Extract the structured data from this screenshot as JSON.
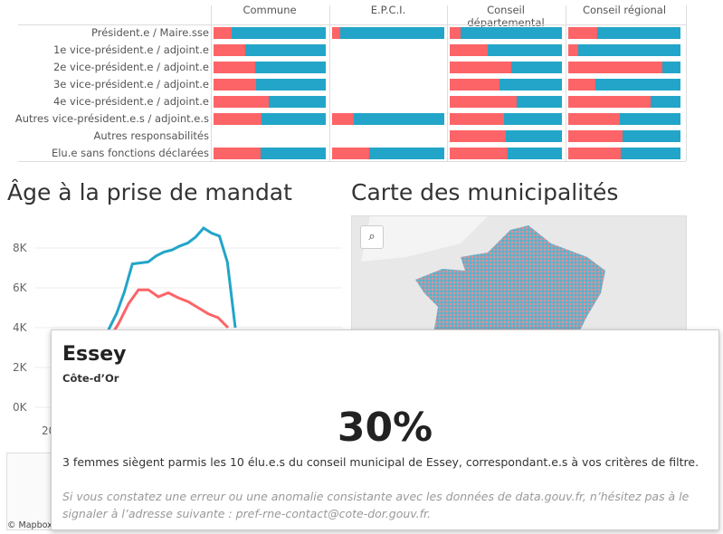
{
  "chart_data": [
    {
      "type": "bar",
      "stacked": true,
      "columns": [
        "Commune",
        "E.P.C.I.",
        "Conseil départemental",
        "Conseil régional"
      ],
      "rows": [
        "Président.e / Maire.sse",
        "1e vice-président.e / adjoint.e",
        "2e vice-président.e / adjoint.e",
        "3e vice-président.e / adjoint.e",
        "4e vice-président.e / adjoint.e",
        "Autres vice-président.e.s / adjoint.e.s",
        "Autres responsabilités",
        "Elu.e sans fonctions déclarées"
      ],
      "female_share": [
        [
          0.16,
          0.07,
          0.1,
          0.26
        ],
        [
          0.28,
          null,
          0.34,
          0.09
        ],
        [
          0.37,
          null,
          0.55,
          0.84
        ],
        [
          0.38,
          null,
          0.44,
          0.24
        ],
        [
          0.49,
          null,
          0.6,
          0.73
        ],
        [
          0.43,
          0.19,
          0.48,
          0.46
        ],
        [
          null,
          null,
          0.5,
          0.48
        ],
        [
          0.42,
          0.33,
          0.52,
          0.47
        ]
      ],
      "colors": {
        "femmes": "#fc6467",
        "hommes": "#22a5c8"
      }
    },
    {
      "type": "line",
      "title": "Âge à la prise de mandat",
      "yticks": [
        "0K",
        "2K",
        "4K",
        "6K",
        "8K"
      ],
      "ylim": [
        0,
        9000
      ],
      "xtick_partial": "20",
      "series": [
        {
          "color": "#22a5c8",
          "values": [
            3900,
            4700,
            5800,
            7200,
            7250,
            7300,
            7600,
            7800,
            7900,
            8100,
            8250,
            8550,
            9000,
            8750,
            8600,
            7300,
            4000
          ]
        },
        {
          "color": "#fc6467",
          "values": [
            3400,
            4200,
            5200,
            5900,
            5900,
            5550,
            5750,
            5500,
            5300,
            5000,
            4700,
            4500,
            4000
          ]
        }
      ]
    }
  ],
  "map": {
    "title": "Carte des municipalités",
    "search_icon": "search-icon",
    "credit": "© Mapbox©"
  },
  "tooltip": {
    "title": "Essey",
    "subtitle": "Côte-d’Or",
    "percent": "30%",
    "text": "3 femmes siègent parmis les 10 élu.e.s du conseil municipal de Essey, correspondant.e.s à vos critères de filtre.",
    "note": "Si vous constatez une erreur ou une anomalie consistante avec les données de data.gouv.fr, n’hésitez pas à le signaler à l’adresse suivante : pref-rne-contact@cote-dor.gouv.fr."
  }
}
